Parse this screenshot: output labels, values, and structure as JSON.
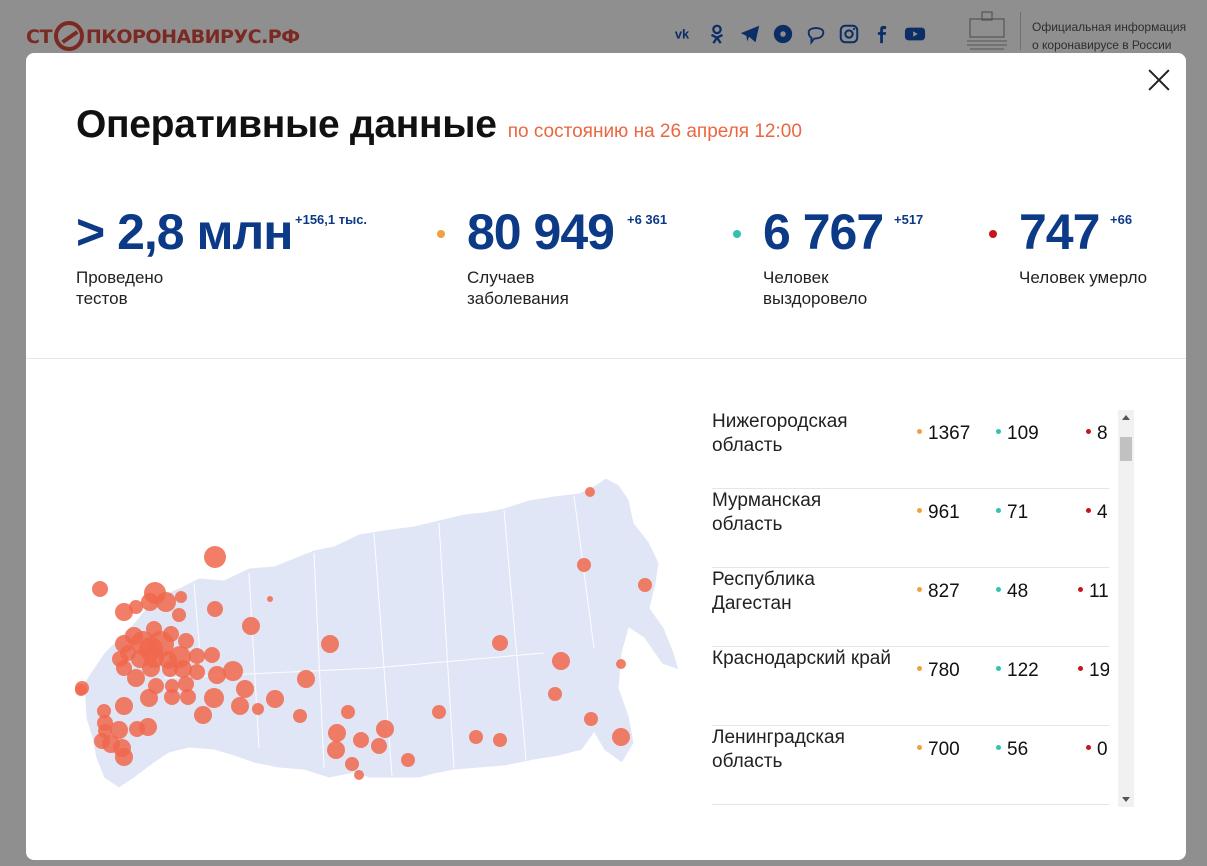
{
  "header": {
    "logo_text_left": "СТ",
    "logo_text_right": "ПКОРОНАВИРУС.РФ",
    "social_icons": [
      "vk-icon",
      "odnoklassniki-icon",
      "telegram-icon",
      "yandex-zen-icon",
      "viber-icon",
      "instagram-icon",
      "facebook-icon",
      "youtube-icon"
    ],
    "gov_text_line1": "Официальная информация",
    "gov_text_line2": "о коронавирусе в России"
  },
  "modal": {
    "title": "Оперативные данные",
    "subtitle": "по состоянию на 26 апреля 12:00"
  },
  "stats": [
    {
      "value": "> 2,8 млн",
      "delta": "+156,1 тыс.",
      "label": "Проведено тестов",
      "dot_color": ""
    },
    {
      "value": "80 949",
      "delta": "+6 361",
      "label": "Случаев заболевания",
      "dot_color": "#f0a040"
    },
    {
      "value": "6 767",
      "delta": "+517",
      "label": "Человек выздоровело",
      "dot_color": "#2ec4b0"
    },
    {
      "value": "747",
      "delta": "+66",
      "label": "Человек умерло",
      "dot_color": "#c8141e"
    }
  ],
  "colors": {
    "cases": "#f0a040",
    "recovered": "#2ec4b0",
    "deaths": "#c8141e",
    "accent": "#ec6640",
    "brand": "#0c3a86"
  },
  "regions": [
    {
      "name": "Нижегородская область",
      "cases": "1367",
      "recovered": "109",
      "deaths": "8"
    },
    {
      "name": "Мурманская область",
      "cases": "961",
      "recovered": "71",
      "deaths": "4"
    },
    {
      "name": "Республика Дагестан",
      "cases": "827",
      "recovered": "48",
      "deaths": "11"
    },
    {
      "name": "Краснодарский край",
      "cases": "780",
      "recovered": "122",
      "deaths": "19"
    },
    {
      "name": "Ленинградская область",
      "cases": "700",
      "recovered": "56",
      "deaths": "0"
    }
  ]
}
